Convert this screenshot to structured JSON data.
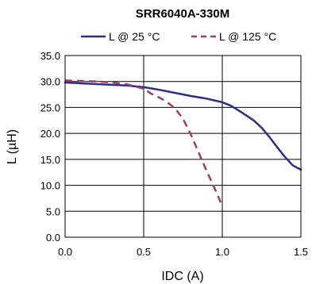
{
  "chart_data": {
    "type": "line",
    "title": "SRR6040A-330M",
    "xlabel": "IDC (A)",
    "ylabel": "L (µH)",
    "xlim": [
      0,
      1.5
    ],
    "ylim": [
      0,
      35
    ],
    "x_ticks": [
      "0.0",
      "0.5",
      "1.0",
      "1.5"
    ],
    "y_ticks": [
      "0.0",
      "5.0",
      "10.0",
      "15.0",
      "20.0",
      "25.0",
      "30.0",
      "35.0"
    ],
    "grid": true,
    "legend_position": "top",
    "series": [
      {
        "name": "L @ 25 °C",
        "color": "#2b2f86",
        "style": "solid",
        "points": [
          [
            0.0,
            29.8
          ],
          [
            0.2,
            29.5
          ],
          [
            0.4,
            29.2
          ],
          [
            0.5,
            28.9
          ],
          [
            0.6,
            28.4
          ],
          [
            0.7,
            27.8
          ],
          [
            0.8,
            27.2
          ],
          [
            0.9,
            26.7
          ],
          [
            1.0,
            26.0
          ],
          [
            1.05,
            25.4
          ],
          [
            1.1,
            24.5
          ],
          [
            1.15,
            23.5
          ],
          [
            1.2,
            22.5
          ],
          [
            1.25,
            21.1
          ],
          [
            1.3,
            19.3
          ],
          [
            1.35,
            17.3
          ],
          [
            1.4,
            15.4
          ],
          [
            1.45,
            13.8
          ],
          [
            1.5,
            13.0
          ]
        ]
      },
      {
        "name": "L @ 125 °C",
        "color": "#a23a6a",
        "style": "dashed",
        "points": [
          [
            0.0,
            30.2
          ],
          [
            0.2,
            30.0
          ],
          [
            0.3,
            29.8
          ],
          [
            0.4,
            29.4
          ],
          [
            0.5,
            28.6
          ],
          [
            0.55,
            27.6
          ],
          [
            0.6,
            26.9
          ],
          [
            0.65,
            26.0
          ],
          [
            0.7,
            24.8
          ],
          [
            0.75,
            22.8
          ],
          [
            0.8,
            19.8
          ],
          [
            0.85,
            16.3
          ],
          [
            0.9,
            12.8
          ],
          [
            0.95,
            9.5
          ],
          [
            1.0,
            6.0
          ]
        ]
      }
    ]
  }
}
